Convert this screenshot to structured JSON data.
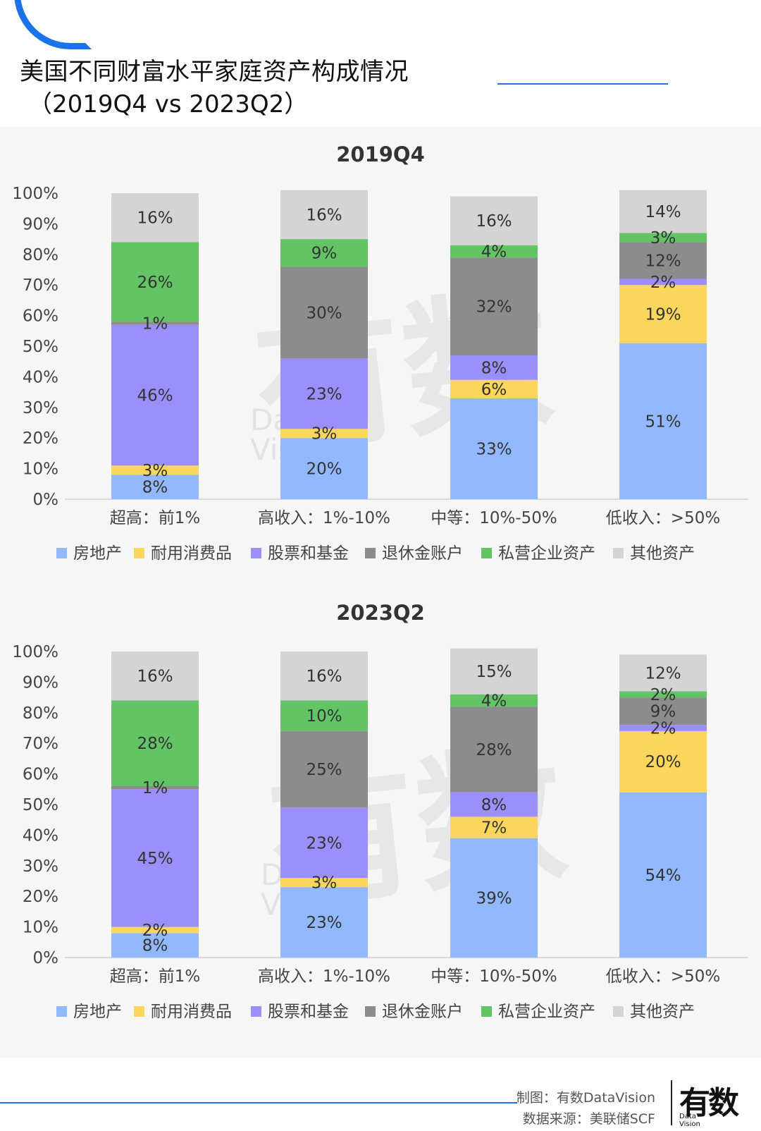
{
  "header": {
    "title_line1": "美国不同财富水平家庭资产构成情况",
    "title_line2": "（2019Q4 vs 2023Q2）"
  },
  "watermark": {
    "text": "有数",
    "sub_line1": "Data",
    "sub_line2": "Vision"
  },
  "footer": {
    "made_by": "制图：有数DataVision",
    "source": "数据来源：美联储SCF",
    "logo_main": "有数",
    "logo_sub_line1": "Data",
    "logo_sub_line2": "Vision"
  },
  "colors": {
    "房地产": "#92b8ff",
    "耐用消费品": "#fbd65c",
    "股票和基金": "#9b8ffb",
    "退休金账户": "#8c8c8c",
    "私营企业资产": "#63c466",
    "其他资产": "#d4d4d4"
  },
  "chart_data": [
    {
      "type": "bar",
      "stacked": true,
      "title": "2019Q4",
      "categories": [
        "超高：前1%",
        "高收入：1%-10%",
        "中等：10%-50%",
        "低收入：>50%"
      ],
      "yticks": [
        "0%",
        "10%",
        "20%",
        "30%",
        "40%",
        "50%",
        "60%",
        "70%",
        "80%",
        "90%",
        "100%"
      ],
      "ylim": [
        0,
        100
      ],
      "legend_position": "bottom",
      "series": [
        {
          "name": "房地产",
          "values": [
            8,
            20,
            33,
            51
          ],
          "labels": [
            "8%",
            "20%",
            "33%",
            "51%"
          ]
        },
        {
          "name": "耐用消费品",
          "values": [
            3,
            3,
            6,
            19
          ],
          "labels": [
            "3%",
            "3%",
            "6%",
            "19%"
          ]
        },
        {
          "name": "股票和基金",
          "values": [
            46,
            23,
            8,
            2
          ],
          "labels": [
            "46%",
            "23%",
            "8%",
            "2%"
          ]
        },
        {
          "name": "退休金账户",
          "values": [
            1,
            30,
            32,
            12
          ],
          "labels": [
            "1%",
            "30%",
            "32%",
            "12%"
          ]
        },
        {
          "name": "私营企业资产",
          "values": [
            26,
            9,
            4,
            3
          ],
          "labels": [
            "26%",
            "9%",
            "4%",
            "3%"
          ]
        },
        {
          "name": "其他资产",
          "values": [
            16,
            16,
            16,
            14
          ],
          "labels": [
            "16%",
            "16%",
            "16%",
            "14%"
          ]
        }
      ]
    },
    {
      "type": "bar",
      "stacked": true,
      "title": "2023Q2",
      "categories": [
        "超高：前1%",
        "高收入：1%-10%",
        "中等：10%-50%",
        "低收入：>50%"
      ],
      "yticks": [
        "0%",
        "10%",
        "20%",
        "30%",
        "40%",
        "50%",
        "60%",
        "70%",
        "80%",
        "90%",
        "100%"
      ],
      "ylim": [
        0,
        100
      ],
      "legend_position": "bottom",
      "series": [
        {
          "name": "房地产",
          "values": [
            8,
            23,
            39,
            54
          ],
          "labels": [
            "8%",
            "23%",
            "39%",
            "54%"
          ]
        },
        {
          "name": "耐用消费品",
          "values": [
            2,
            3,
            7,
            20
          ],
          "labels": [
            "2%",
            "3%",
            "7%",
            "20%"
          ]
        },
        {
          "name": "股票和基金",
          "values": [
            45,
            23,
            8,
            2
          ],
          "labels": [
            "45%",
            "23%",
            "8%",
            "2%"
          ]
        },
        {
          "name": "退休金账户",
          "values": [
            1,
            25,
            28,
            9
          ],
          "labels": [
            "1%",
            "25%",
            "28%",
            "9%"
          ]
        },
        {
          "name": "私营企业资产",
          "values": [
            28,
            10,
            4,
            2
          ],
          "labels": [
            "28%",
            "10%",
            "4%",
            "2%"
          ]
        },
        {
          "name": "其他资产",
          "values": [
            16,
            16,
            15,
            12
          ],
          "labels": [
            "16%",
            "16%",
            "15%",
            "12%"
          ]
        }
      ]
    }
  ]
}
